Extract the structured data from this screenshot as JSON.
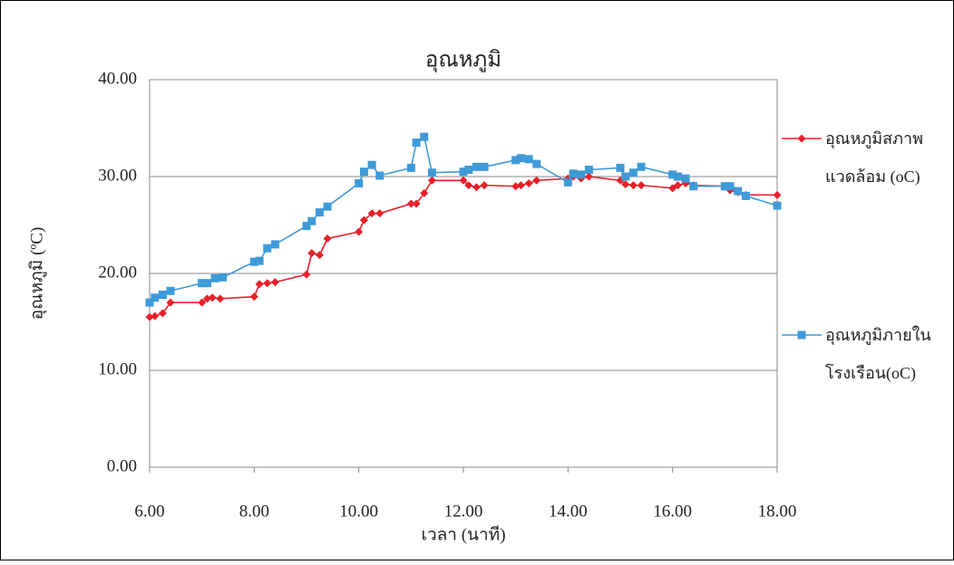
{
  "chart_data": {
    "type": "line",
    "title": "อุณหภูมิ",
    "x_label": "เวลา (นาที)",
    "y_label": "อุณหภูมิ (ºC)",
    "xlim": [
      6,
      18
    ],
    "ylim": [
      0,
      40
    ],
    "xticks": [
      {
        "value": 6,
        "label": "6.00"
      },
      {
        "value": 8,
        "label": "8.00"
      },
      {
        "value": 10,
        "label": "10.00"
      },
      {
        "value": 12,
        "label": "12.00"
      },
      {
        "value": 14,
        "label": "14.00"
      },
      {
        "value": 16,
        "label": "16.00"
      },
      {
        "value": 18,
        "label": "18.00"
      }
    ],
    "yticks": [
      {
        "value": 0,
        "label": "0.00"
      },
      {
        "value": 10,
        "label": "10.00"
      },
      {
        "value": 20,
        "label": "20.00"
      },
      {
        "value": 30,
        "label": "30.00"
      },
      {
        "value": 40,
        "label": "40.00"
      }
    ],
    "grid": true,
    "legend": "right",
    "series": [
      {
        "name": "อุณหภูมิสภาพแวดล้อม (oC)",
        "color": "#e8202a",
        "marker": "diamond",
        "x": [
          6.0,
          6.1,
          6.25,
          6.4,
          7.0,
          7.1,
          7.2,
          7.35,
          8.0,
          8.1,
          8.25,
          8.4,
          9.0,
          9.1,
          9.25,
          9.4,
          10.0,
          10.1,
          10.25,
          10.4,
          11.0,
          11.1,
          11.25,
          11.4,
          12.0,
          12.1,
          12.25,
          12.4,
          13.0,
          13.1,
          13.25,
          13.4,
          14.0,
          14.1,
          14.25,
          14.4,
          15.0,
          15.1,
          15.25,
          15.4,
          16.0,
          16.1,
          16.25,
          16.4,
          17.0,
          17.1,
          17.25,
          17.4,
          18.0
        ],
        "values": [
          15.5,
          15.6,
          15.9,
          17.0,
          17.0,
          17.4,
          17.5,
          17.4,
          17.6,
          18.9,
          19.0,
          19.1,
          19.9,
          22.1,
          21.9,
          23.6,
          24.3,
          25.5,
          26.2,
          26.2,
          27.2,
          27.2,
          28.3,
          29.6,
          29.6,
          29.1,
          28.9,
          29.1,
          29.0,
          29.1,
          29.3,
          29.6,
          29.8,
          30.0,
          29.8,
          30.0,
          29.6,
          29.2,
          29.1,
          29.1,
          28.8,
          29.1,
          29.3,
          29.1,
          29.0,
          28.6,
          28.4,
          28.1,
          28.1
        ]
      },
      {
        "name": "อุณหภูมิภายในโรงเรือน(oC)",
        "color": "#3f9ad8",
        "marker": "square",
        "x": [
          6.0,
          6.1,
          6.25,
          6.4,
          7.0,
          7.1,
          7.25,
          7.4,
          8.0,
          8.1,
          8.25,
          8.4,
          9.0,
          9.1,
          9.25,
          9.4,
          10.0,
          10.1,
          10.25,
          10.4,
          11.0,
          11.1,
          11.25,
          11.4,
          12.0,
          12.1,
          12.25,
          12.4,
          13.0,
          13.1,
          13.25,
          13.4,
          14.0,
          14.1,
          14.25,
          14.4,
          15.0,
          15.1,
          15.25,
          15.4,
          16.0,
          16.1,
          16.25,
          16.4,
          17.0,
          17.1,
          17.25,
          17.4,
          18.0
        ],
        "values": [
          17.0,
          17.5,
          17.8,
          18.2,
          19.0,
          19.0,
          19.5,
          19.6,
          21.2,
          21.3,
          22.6,
          23.0,
          24.9,
          25.4,
          26.3,
          26.9,
          29.3,
          30.5,
          31.2,
          30.1,
          30.9,
          33.5,
          34.1,
          30.4,
          30.5,
          30.7,
          31.0,
          31.0,
          31.7,
          31.9,
          31.8,
          31.3,
          29.4,
          30.3,
          30.2,
          30.7,
          30.9,
          30.0,
          30.4,
          31.0,
          30.2,
          30.0,
          29.8,
          29.0,
          29.0,
          29.0,
          28.5,
          28.0,
          27.0
        ]
      }
    ]
  }
}
